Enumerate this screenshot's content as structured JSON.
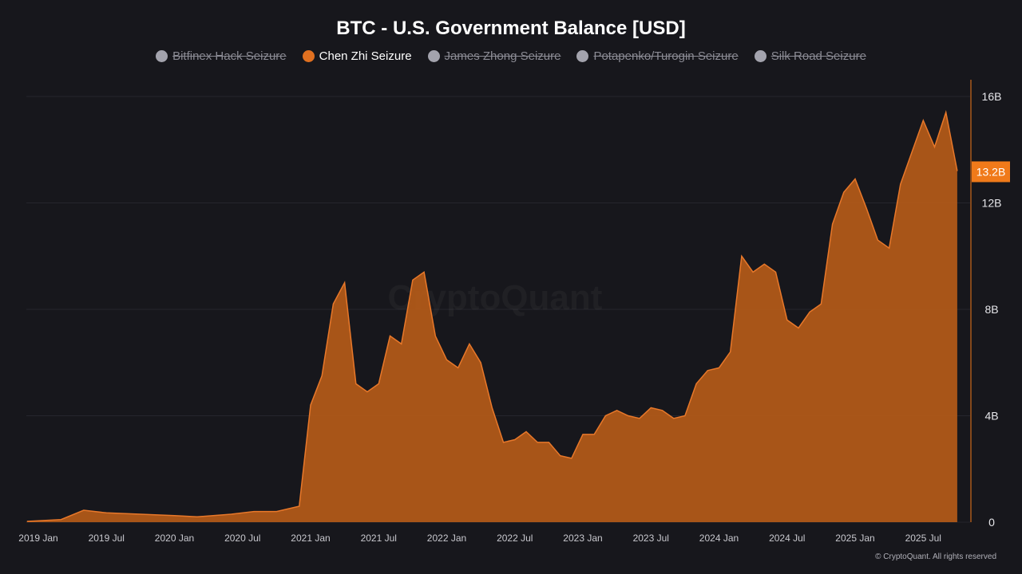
{
  "title": "BTC - U.S. Government Balance [USD]",
  "legend": [
    {
      "label": "Bitfinex Hack Seizure",
      "active": false
    },
    {
      "label": "Chen Zhi Seizure",
      "active": true,
      "color": "#e07020"
    },
    {
      "label": "James Zhong Seizure",
      "active": false
    },
    {
      "label": "Potapenko/Turogin Seizure",
      "active": false
    },
    {
      "label": "Silk Road Seizure",
      "active": false
    }
  ],
  "watermark": "CryptoQuant",
  "footer": "© CryptoQuant. All rights reserved",
  "colors": {
    "background": "#17171c",
    "series_line": "#e8782a",
    "series_fill": "#b85c18",
    "grid": "#26262d",
    "badge": "#f07a1a"
  },
  "chart_data": {
    "type": "area",
    "title": "BTC - U.S. Government Balance [USD]",
    "y_axis_position": "right",
    "ylim": [
      0,
      16000000000
    ],
    "y_ticks": [
      {
        "v": 0,
        "label": "0"
      },
      {
        "v": 4000000000,
        "label": "4B"
      },
      {
        "v": 8000000000,
        "label": "8B"
      },
      {
        "v": 12000000000,
        "label": "12B"
      },
      {
        "v": 16000000000,
        "label": "16B"
      }
    ],
    "x_ticks": [
      "2019-01",
      "2019-07",
      "2020-01",
      "2020-07",
      "2021-01",
      "2021-07",
      "2022-01",
      "2022-07",
      "2023-01",
      "2023-07",
      "2024-01",
      "2024-07",
      "2025-01",
      "2025-07"
    ],
    "x_tick_labels": [
      "2019 Jan",
      "2019 Jul",
      "2020 Jan",
      "2020 Jul",
      "2021 Jan",
      "2021 Jul",
      "2022 Jan",
      "2022 Jul",
      "2023 Jan",
      "2023 Jul",
      "2024 Jan",
      "2024 Jul",
      "2025 Jan",
      "2025 Jul"
    ],
    "grid": true,
    "last_value_label": "13.2B",
    "series": [
      {
        "name": "Chen Zhi Seizure",
        "unit": "B USD",
        "x": [
          "2018-12",
          "2019-01",
          "2019-03",
          "2019-05",
          "2019-07",
          "2019-10",
          "2020-01",
          "2020-03",
          "2020-06",
          "2020-08",
          "2020-10",
          "2020-12",
          "2021-01",
          "2021-02",
          "2021-03",
          "2021-04",
          "2021-05",
          "2021-06",
          "2021-07",
          "2021-08",
          "2021-09",
          "2021-10",
          "2021-11",
          "2021-12",
          "2022-01",
          "2022-02",
          "2022-03",
          "2022-04",
          "2022-05",
          "2022-06",
          "2022-07",
          "2022-08",
          "2022-09",
          "2022-10",
          "2022-11",
          "2022-12",
          "2023-01",
          "2023-02",
          "2023-03",
          "2023-04",
          "2023-05",
          "2023-06",
          "2023-07",
          "2023-08",
          "2023-09",
          "2023-10",
          "2023-11",
          "2023-12",
          "2024-01",
          "2024-02",
          "2024-03",
          "2024-04",
          "2024-05",
          "2024-06",
          "2024-07",
          "2024-08",
          "2024-09",
          "2024-10",
          "2024-11",
          "2024-12",
          "2025-01",
          "2025-02",
          "2025-03",
          "2025-04",
          "2025-05",
          "2025-06",
          "2025-07",
          "2025-08",
          "2025-09",
          "2025-10"
        ],
        "values": [
          0.03,
          0.05,
          0.1,
          0.45,
          0.35,
          0.3,
          0.25,
          0.2,
          0.3,
          0.4,
          0.4,
          0.6,
          4.4,
          5.5,
          8.2,
          9.0,
          5.2,
          4.9,
          5.2,
          7.0,
          6.7,
          9.1,
          9.4,
          7.0,
          6.1,
          5.8,
          6.7,
          6.0,
          4.3,
          3.0,
          3.1,
          3.4,
          3.0,
          3.0,
          2.5,
          2.4,
          3.3,
          3.3,
          4.0,
          4.2,
          4.0,
          3.9,
          4.3,
          4.2,
          3.9,
          4.0,
          5.2,
          5.7,
          5.8,
          6.4,
          10.0,
          9.4,
          9.7,
          9.4,
          7.6,
          7.3,
          7.9,
          8.2,
          11.2,
          12.4,
          12.9,
          11.8,
          10.6,
          10.3,
          12.7,
          13.9,
          15.1,
          14.1,
          15.4,
          13.2
        ]
      }
    ]
  }
}
